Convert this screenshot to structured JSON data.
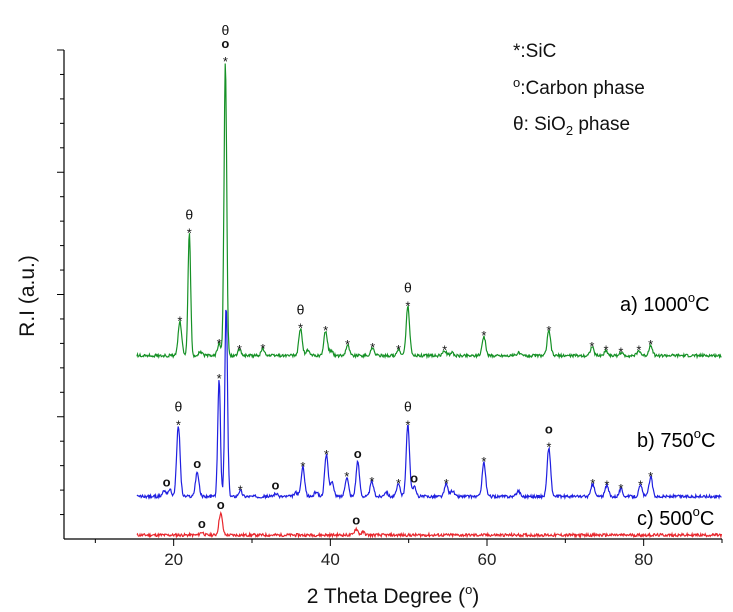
{
  "chart_data": {
    "type": "line",
    "xlabel": "2 Theta Degree (",
    "xlabel_sup": "o",
    "xlabel_tail": ")",
    "ylabel": "R.I (a.u.)",
    "xlim": [
      6,
      90
    ],
    "xticks": [
      20,
      40,
      60,
      80
    ],
    "ylim": [
      0,
      1
    ],
    "y_tick_labels": "none",
    "grid": false,
    "legend": {
      "placement": "top-right",
      "entries": [
        {
          "symbol": "*",
          "text": ":SiC"
        },
        {
          "symbol": "o",
          "text": ":Carbon phase"
        },
        {
          "symbol": "θ",
          "text": ": SiO",
          "sub": "2",
          "tail": " phase"
        }
      ]
    },
    "series": [
      {
        "name": "c) 500",
        "label_sup": "o",
        "label_tail": "C",
        "color": "#e8262c",
        "baseline": 0.008,
        "peaks": [
          [
            23.6,
            0.006
          ],
          [
            26.0,
            0.045
          ],
          [
            43.3,
            0.013
          ],
          [
            44.2,
            0.006
          ]
        ]
      },
      {
        "name": "b) 750",
        "label_sup": "o",
        "label_tail": "C",
        "color": "#1f1fe0",
        "baseline": 0.087,
        "peaks": [
          [
            18.8,
            0.012
          ],
          [
            19.5,
            0.014
          ],
          [
            20.6,
            0.145
          ],
          [
            23.0,
            0.05
          ],
          [
            25.8,
            0.24
          ],
          [
            26.7,
            0.39
          ],
          [
            28.5,
            0.012
          ],
          [
            33.0,
            0.006
          ],
          [
            35.6,
            0.008
          ],
          [
            36.5,
            0.06
          ],
          [
            38.2,
            0.01
          ],
          [
            39.5,
            0.085
          ],
          [
            40.2,
            0.03
          ],
          [
            42.1,
            0.04
          ],
          [
            43.5,
            0.07
          ],
          [
            45.3,
            0.03
          ],
          [
            47.1,
            0.01
          ],
          [
            48.7,
            0.025
          ],
          [
            49.9,
            0.145
          ],
          [
            50.7,
            0.02
          ],
          [
            54.8,
            0.025
          ],
          [
            55.6,
            0.012
          ],
          [
            59.6,
            0.07
          ],
          [
            64.0,
            0.012
          ],
          [
            67.9,
            0.1
          ],
          [
            73.5,
            0.025
          ],
          [
            75.3,
            0.022
          ],
          [
            77.1,
            0.015
          ],
          [
            79.6,
            0.022
          ],
          [
            80.9,
            0.04
          ]
        ]
      },
      {
        "name": "a) 1000",
        "label_sup": "o",
        "label_tail": "C",
        "color": "#169126",
        "baseline": 0.375,
        "peaks": [
          [
            20.8,
            0.07
          ],
          [
            22.0,
            0.25
          ],
          [
            23.4,
            0.008
          ],
          [
            25.8,
            0.024
          ],
          [
            26.6,
            0.6
          ],
          [
            28.4,
            0.012
          ],
          [
            31.4,
            0.014
          ],
          [
            36.2,
            0.055
          ],
          [
            37.1,
            0.01
          ],
          [
            39.4,
            0.05
          ],
          [
            40.1,
            0.01
          ],
          [
            42.2,
            0.022
          ],
          [
            45.4,
            0.016
          ],
          [
            48.7,
            0.012
          ],
          [
            49.9,
            0.1
          ],
          [
            54.6,
            0.01
          ],
          [
            55.5,
            0.006
          ],
          [
            59.6,
            0.04
          ],
          [
            64.0,
            0.006
          ],
          [
            67.9,
            0.05
          ],
          [
            73.4,
            0.018
          ],
          [
            75.2,
            0.01
          ],
          [
            77.1,
            0.006
          ],
          [
            79.4,
            0.01
          ],
          [
            80.9,
            0.022
          ]
        ]
      }
    ],
    "annotations": [
      {
        "series": "a) 1000",
        "x": 20.8,
        "marks": [
          "*"
        ]
      },
      {
        "series": "a) 1000",
        "x": 22.0,
        "marks": [
          "*",
          "θ"
        ]
      },
      {
        "series": "a) 1000",
        "x": 25.8,
        "marks": [
          "*"
        ]
      },
      {
        "series": "a) 1000",
        "x": 26.6,
        "marks": [
          "*",
          "o",
          "θ"
        ]
      },
      {
        "series": "a) 1000",
        "x": 28.4,
        "marks": [
          "*"
        ]
      },
      {
        "series": "a) 1000",
        "x": 31.4,
        "marks": [
          "*"
        ]
      },
      {
        "series": "a) 1000",
        "x": 36.2,
        "marks": [
          "*",
          "θ"
        ]
      },
      {
        "series": "a) 1000",
        "x": 39.4,
        "marks": [
          "*"
        ]
      },
      {
        "series": "a) 1000",
        "x": 42.2,
        "marks": [
          "*"
        ]
      },
      {
        "series": "a) 1000",
        "x": 45.4,
        "marks": [
          "*"
        ]
      },
      {
        "series": "a) 1000",
        "x": 48.7,
        "marks": [
          "*"
        ]
      },
      {
        "series": "a) 1000",
        "x": 49.9,
        "marks": [
          "*",
          "θ"
        ]
      },
      {
        "series": "a) 1000",
        "x": 54.6,
        "marks": [
          "*"
        ]
      },
      {
        "series": "a) 1000",
        "x": 59.6,
        "marks": [
          "*"
        ]
      },
      {
        "series": "a) 1000",
        "x": 67.9,
        "marks": [
          "*"
        ]
      },
      {
        "series": "a) 1000",
        "x": 73.4,
        "marks": [
          "*"
        ]
      },
      {
        "series": "a) 1000",
        "x": 75.2,
        "marks": [
          "*"
        ]
      },
      {
        "series": "a) 1000",
        "x": 77.1,
        "marks": [
          "*"
        ]
      },
      {
        "series": "a) 1000",
        "x": 79.4,
        "marks": [
          "*"
        ]
      },
      {
        "series": "a) 1000",
        "x": 80.9,
        "marks": [
          "*"
        ]
      },
      {
        "series": "b) 750",
        "x": 19.1,
        "marks": [
          "o"
        ]
      },
      {
        "series": "b) 750",
        "x": 20.6,
        "marks": [
          "*",
          "θ"
        ]
      },
      {
        "series": "b) 750",
        "x": 23.0,
        "marks": [
          "o"
        ]
      },
      {
        "series": "b) 750",
        "x": 25.8,
        "marks": [
          "*"
        ]
      },
      {
        "series": "b) 750",
        "x": 28.5,
        "marks": [
          "*"
        ]
      },
      {
        "series": "b) 750",
        "x": 33.0,
        "marks": [
          "o"
        ]
      },
      {
        "series": "b) 750",
        "x": 36.5,
        "marks": [
          "*"
        ]
      },
      {
        "series": "b) 750",
        "x": 39.5,
        "marks": [
          "*"
        ]
      },
      {
        "series": "b) 750",
        "x": 42.1,
        "marks": [
          "*"
        ]
      },
      {
        "series": "b) 750",
        "x": 43.5,
        "marks": [
          "o"
        ]
      },
      {
        "series": "b) 750",
        "x": 45.3,
        "marks": [
          "*"
        ]
      },
      {
        "series": "b) 750",
        "x": 48.7,
        "marks": [
          "*"
        ]
      },
      {
        "series": "b) 750",
        "x": 49.9,
        "marks": [
          "*",
          "θ"
        ]
      },
      {
        "series": "b) 750",
        "x": 50.7,
        "marks": [
          "o"
        ]
      },
      {
        "series": "b) 750",
        "x": 54.8,
        "marks": [
          "*"
        ]
      },
      {
        "series": "b) 750",
        "x": 59.6,
        "marks": [
          "*"
        ]
      },
      {
        "series": "b) 750",
        "x": 67.9,
        "marks": [
          "*",
          "o"
        ]
      },
      {
        "series": "b) 750",
        "x": 73.5,
        "marks": [
          "*"
        ]
      },
      {
        "series": "b) 750",
        "x": 75.3,
        "marks": [
          "*"
        ]
      },
      {
        "series": "b) 750",
        "x": 77.1,
        "marks": [
          "*"
        ]
      },
      {
        "series": "b) 750",
        "x": 79.6,
        "marks": [
          "*"
        ]
      },
      {
        "series": "b) 750",
        "x": 80.9,
        "marks": [
          "*"
        ]
      },
      {
        "series": "c) 500",
        "x": 23.6,
        "marks": [
          "o"
        ]
      },
      {
        "series": "c) 500",
        "x": 26.0,
        "marks": [
          "o"
        ]
      },
      {
        "series": "c) 500",
        "x": 43.3,
        "marks": [
          "o"
        ]
      }
    ]
  }
}
